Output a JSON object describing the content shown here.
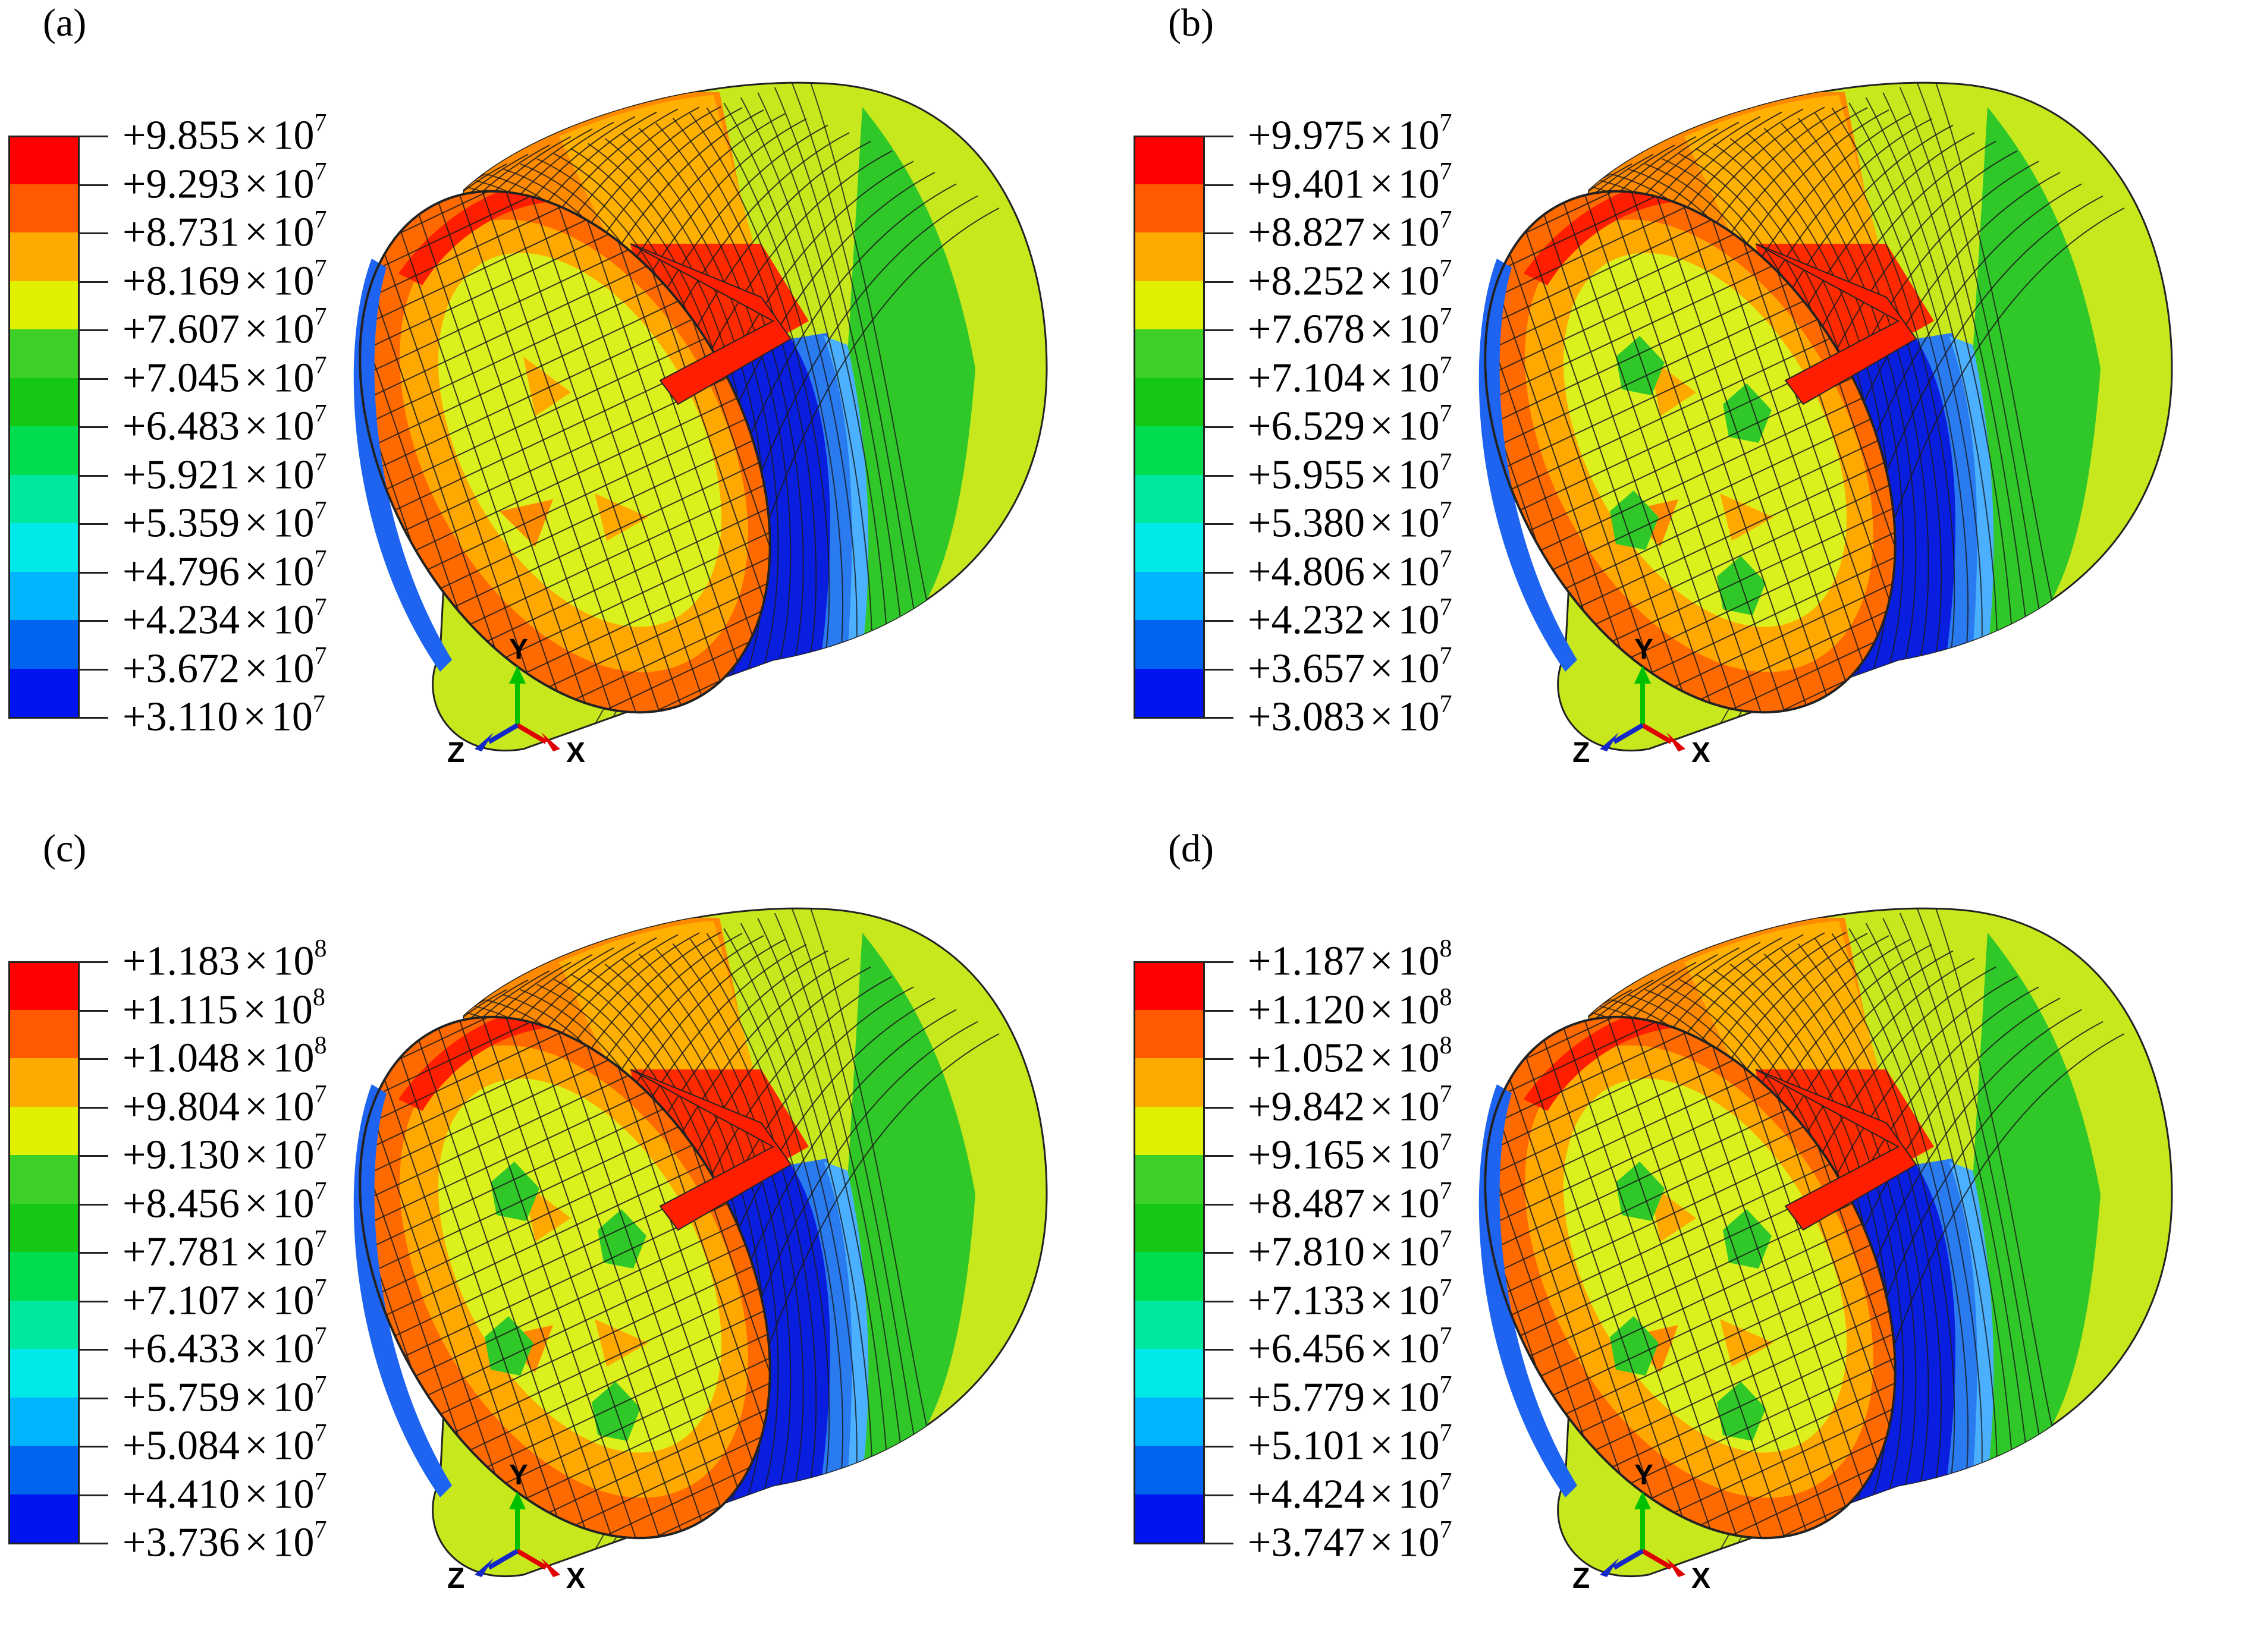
{
  "panels": [
    {
      "label": "(a)",
      "legend": [
        {
          "mantissa": "+9.855",
          "exp": "7"
        },
        {
          "mantissa": "+9.293",
          "exp": "7"
        },
        {
          "mantissa": "+8.731",
          "exp": "7"
        },
        {
          "mantissa": "+8.169",
          "exp": "7"
        },
        {
          "mantissa": "+7.607",
          "exp": "7"
        },
        {
          "mantissa": "+7.045",
          "exp": "7"
        },
        {
          "mantissa": "+6.483",
          "exp": "7"
        },
        {
          "mantissa": "+5.921",
          "exp": "7"
        },
        {
          "mantissa": "+5.359",
          "exp": "7"
        },
        {
          "mantissa": "+4.796",
          "exp": "7"
        },
        {
          "mantissa": "+4.234",
          "exp": "7"
        },
        {
          "mantissa": "+3.672",
          "exp": "7"
        },
        {
          "mantissa": "+3.110",
          "exp": "7"
        }
      ],
      "green_spots": false,
      "triad": {
        "x": "X",
        "y": "Y",
        "z": "Z"
      }
    },
    {
      "label": "(b)",
      "legend": [
        {
          "mantissa": "+9.975",
          "exp": "7"
        },
        {
          "mantissa": "+9.401",
          "exp": "7"
        },
        {
          "mantissa": "+8.827",
          "exp": "7"
        },
        {
          "mantissa": "+8.252",
          "exp": "7"
        },
        {
          "mantissa": "+7.678",
          "exp": "7"
        },
        {
          "mantissa": "+7.104",
          "exp": "7"
        },
        {
          "mantissa": "+6.529",
          "exp": "7"
        },
        {
          "mantissa": "+5.955",
          "exp": "7"
        },
        {
          "mantissa": "+5.380",
          "exp": "7"
        },
        {
          "mantissa": "+4.806",
          "exp": "7"
        },
        {
          "mantissa": "+4.232",
          "exp": "7"
        },
        {
          "mantissa": "+3.657",
          "exp": "7"
        },
        {
          "mantissa": "+3.083",
          "exp": "7"
        }
      ],
      "green_spots": true,
      "triad": {
        "x": "X",
        "y": "Y",
        "z": "Z"
      }
    },
    {
      "label": "(c)",
      "legend": [
        {
          "mantissa": "+1.183",
          "exp": "8"
        },
        {
          "mantissa": "+1.115",
          "exp": "8"
        },
        {
          "mantissa": "+1.048",
          "exp": "8"
        },
        {
          "mantissa": "+9.804",
          "exp": "7"
        },
        {
          "mantissa": "+9.130",
          "exp": "7"
        },
        {
          "mantissa": "+8.456",
          "exp": "7"
        },
        {
          "mantissa": "+7.781",
          "exp": "7"
        },
        {
          "mantissa": "+7.107",
          "exp": "7"
        },
        {
          "mantissa": "+6.433",
          "exp": "7"
        },
        {
          "mantissa": "+5.759",
          "exp": "7"
        },
        {
          "mantissa": "+5.084",
          "exp": "7"
        },
        {
          "mantissa": "+4.410",
          "exp": "7"
        },
        {
          "mantissa": "+3.736",
          "exp": "7"
        }
      ],
      "green_spots": true,
      "triad": {
        "x": "X",
        "y": "Y",
        "z": "Z"
      }
    },
    {
      "label": "(d)",
      "legend": [
        {
          "mantissa": "+1.187",
          "exp": "8"
        },
        {
          "mantissa": "+1.120",
          "exp": "8"
        },
        {
          "mantissa": "+1.052",
          "exp": "8"
        },
        {
          "mantissa": "+9.842",
          "exp": "7"
        },
        {
          "mantissa": "+9.165",
          "exp": "7"
        },
        {
          "mantissa": "+8.487",
          "exp": "7"
        },
        {
          "mantissa": "+7.810",
          "exp": "7"
        },
        {
          "mantissa": "+7.133",
          "exp": "7"
        },
        {
          "mantissa": "+6.456",
          "exp": "7"
        },
        {
          "mantissa": "+5.779",
          "exp": "7"
        },
        {
          "mantissa": "+5.101",
          "exp": "7"
        },
        {
          "mantissa": "+4.424",
          "exp": "7"
        },
        {
          "mantissa": "+3.747",
          "exp": "7"
        }
      ],
      "green_spots": true,
      "triad": {
        "x": "X",
        "y": "Y",
        "z": "Z"
      }
    }
  ],
  "times_symbol": "×",
  "exp_base": "10",
  "band_colors": [
    "#ff0000",
    "#ff5a00",
    "#ffaa00",
    "#dff000",
    "#3cd028",
    "#14c814",
    "#00dc50",
    "#00e8a0",
    "#00e8e8",
    "#00b4ff",
    "#0064f0",
    "#0014f0"
  ],
  "triad_colors": {
    "x": "#e00000",
    "y": "#00c000",
    "z": "#1428c8"
  }
}
